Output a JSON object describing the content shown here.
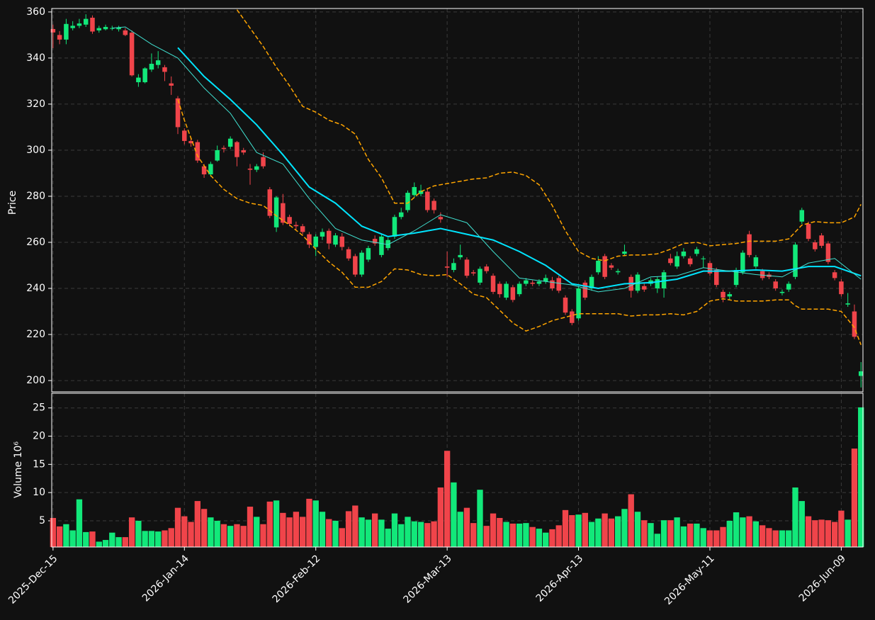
{
  "chart_data": [
    {
      "type": "candlestick",
      "ylabel": "Price",
      "up_color": "#12e87a",
      "down_color": "#f0444a",
      "x": [
        0,
        1,
        2,
        3,
        4,
        5,
        6,
        7,
        8,
        9,
        10,
        11,
        12,
        13,
        14,
        15,
        16,
        17,
        18,
        19,
        20,
        21,
        22,
        23,
        24,
        25,
        26,
        27,
        28,
        29,
        30,
        31,
        32,
        33,
        34,
        35,
        36,
        37,
        38,
        39,
        40,
        41,
        42,
        43,
        44,
        45,
        46,
        47,
        48,
        49,
        50,
        51,
        52,
        53,
        54,
        55,
        56,
        57,
        58,
        59,
        60,
        61,
        62,
        63,
        64,
        65,
        66,
        67,
        68,
        69,
        70,
        71,
        72,
        73,
        74,
        75,
        76,
        77,
        78,
        79,
        80,
        81,
        82,
        83,
        84,
        85,
        86,
        87,
        88,
        89,
        90,
        91,
        92,
        93,
        94,
        95,
        96,
        97,
        98,
        99,
        100,
        101,
        102,
        103,
        104,
        105,
        106,
        107,
        108,
        109,
        110,
        111,
        112,
        113,
        114,
        115,
        116,
        117,
        118,
        119,
        120,
        121,
        122,
        123
      ],
      "open": [
        352.6,
        350,
        348,
        353,
        354,
        354.5,
        357.5,
        352,
        352.5,
        353,
        352.5,
        352,
        351,
        329.5,
        329.5,
        335,
        337,
        336,
        329,
        322.5,
        308.5,
        304,
        303.5,
        293,
        289.5,
        295.5,
        301,
        301.5,
        303.5,
        300,
        292,
        291.5,
        297,
        283,
        266.5,
        277,
        271,
        267.5,
        267,
        263.5,
        258,
        262.5,
        265,
        259,
        262.5,
        257,
        254,
        246,
        252.5,
        261.5,
        254.5,
        257.5,
        262.5,
        271,
        274,
        280.5,
        281,
        282,
        278,
        271,
        249.5,
        248,
        253.5,
        252.5,
        247,
        242.5,
        249.5,
        245.5,
        242,
        236,
        240.5,
        237.5,
        242,
        242.5,
        242,
        243,
        243.5,
        244.5,
        236,
        230,
        227,
        242.5,
        240,
        247,
        254,
        250,
        247,
        255,
        245,
        239,
        241,
        242,
        240,
        240,
        253,
        249.5,
        254,
        253,
        255,
        253,
        251,
        248,
        238.5,
        236.5,
        241.5,
        247,
        263.5,
        249.5,
        247.5,
        246,
        243,
        238,
        239.5,
        245,
        269,
        268,
        260,
        263,
        259.5,
        247,
        243,
        233,
        230,
        202
      ],
      "high": [
        354.5,
        351.7,
        357,
        356,
        357,
        359,
        358.5,
        354,
        354.5,
        354,
        354,
        353,
        352,
        333,
        336,
        342,
        343,
        337,
        332,
        323.5,
        309.5,
        305.5,
        304.5,
        294,
        295,
        302,
        302,
        306,
        304,
        301,
        294,
        294,
        299,
        284,
        280,
        281,
        272,
        269,
        268,
        264.5,
        263.5,
        266,
        266,
        264,
        264,
        258,
        255,
        256.5,
        258.5,
        263,
        263.5,
        262,
        272,
        275,
        282.5,
        286,
        285,
        283,
        279,
        273,
        256,
        253,
        259,
        253.5,
        248,
        249.5,
        250.5,
        246.5,
        243,
        243,
        241.5,
        243,
        244.5,
        243.5,
        244,
        246,
        245,
        245.5,
        237,
        231,
        241,
        243.5,
        246,
        254,
        255,
        251,
        248.5,
        259,
        246,
        247,
        242,
        244.5,
        245,
        248,
        255,
        256,
        257.5,
        254,
        258,
        254,
        252,
        249,
        239.5,
        238.5,
        249,
        256.5,
        265,
        254.5,
        248.5,
        247,
        244,
        239.5,
        243,
        260,
        275,
        269,
        261,
        264,
        260.5,
        248,
        244,
        238,
        233,
        208
      ],
      "low": [
        344.3,
        346,
        346,
        352,
        353,
        353.5,
        350.5,
        351,
        352,
        352,
        351.5,
        349.5,
        332,
        327.5,
        329,
        334,
        335.5,
        330,
        324,
        307,
        302.5,
        301.5,
        294.5,
        288,
        288.5,
        295,
        299,
        300.5,
        293,
        298,
        285,
        290.5,
        292,
        270.5,
        264.5,
        267.5,
        267,
        265.5,
        263.5,
        257.5,
        254,
        261,
        257,
        258,
        256.5,
        252,
        245,
        245,
        251.5,
        258.5,
        253.5,
        256.5,
        261.5,
        270,
        273,
        279.5,
        280,
        273,
        272.5,
        268.5,
        245,
        247,
        252.5,
        244.5,
        245.5,
        241.5,
        246.5,
        237.5,
        236,
        235,
        234,
        236.5,
        241,
        241,
        241,
        242,
        239,
        238,
        228.5,
        224,
        226,
        235,
        239,
        246,
        244,
        248,
        246,
        254,
        236,
        238,
        238.5,
        241,
        238,
        236,
        250,
        248.5,
        253,
        249.5,
        254,
        249,
        245.5,
        240.5,
        234,
        235,
        240.5,
        246,
        253.5,
        248.5,
        243.5,
        244,
        239,
        237,
        238.5,
        244,
        268,
        260.5,
        256,
        257.5,
        250.5,
        243.5,
        236.5,
        232,
        218,
        197
      ],
      "close": [
        351.1,
        348,
        354.8,
        354,
        355,
        357,
        351.5,
        353,
        353.5,
        353,
        353.3,
        350,
        332.5,
        331.5,
        335.5,
        337.5,
        339,
        334,
        328,
        310,
        304,
        303,
        295.5,
        289.5,
        294,
        300,
        300.5,
        305,
        297,
        299,
        291.5,
        293,
        293,
        271.5,
        279.5,
        268.5,
        268,
        267,
        264.5,
        259,
        262.5,
        264.5,
        259.5,
        263,
        258,
        253,
        246,
        255.5,
        257.5,
        259.5,
        262.5,
        261,
        271,
        273,
        281.5,
        284,
        282.5,
        274,
        274,
        270,
        249,
        251,
        254.5,
        245.5,
        246.5,
        248.5,
        247.5,
        238.5,
        237.5,
        242,
        235,
        242,
        243.5,
        242,
        243,
        244.5,
        240,
        239,
        229.5,
        225,
        240,
        236,
        245,
        252,
        245,
        249,
        247.5,
        256,
        239,
        246,
        239.5,
        243.5,
        244,
        247,
        251,
        254,
        256,
        250.5,
        257,
        253,
        246.5,
        241.5,
        236,
        237.5,
        248,
        255.5,
        254.5,
        253.5,
        244.5,
        245,
        240,
        238.5,
        242,
        259,
        274,
        261.5,
        257,
        258.5,
        251.5,
        244.5,
        237.5,
        233.5,
        219,
        204
      ],
      "lines": [
        {
          "color": "#00e5ff",
          "width": 2,
          "dash": false,
          "x": [
            19,
            23,
            27,
            31,
            35,
            39,
            43,
            47,
            51,
            55,
            59,
            63,
            67,
            71,
            75,
            79,
            83,
            87,
            91,
            95,
            99,
            103,
            107,
            111,
            115,
            119,
            123
          ],
          "values": [
            344.5,
            332,
            322,
            311,
            298,
            284,
            277,
            267,
            262.5,
            264,
            266,
            263.5,
            261,
            256,
            250,
            242,
            240,
            242,
            242.5,
            244,
            247.5,
            247.5,
            248,
            247.5,
            249.5,
            249.5,
            245.5
          ]
        },
        {
          "color": "#40e0d0",
          "width": 1,
          "dash": false,
          "x": [
            9,
            11,
            15,
            19,
            23,
            27,
            31,
            35,
            39,
            43,
            47,
            51,
            55,
            59,
            63,
            67,
            71,
            75,
            79,
            83,
            87,
            91,
            95,
            99,
            103,
            107,
            111,
            115,
            119,
            123
          ],
          "values": [
            353,
            353.5,
            346,
            340,
            327,
            316,
            299,
            294,
            279,
            266,
            261,
            259,
            265,
            272,
            268.5,
            256,
            244.5,
            243,
            241.5,
            238.5,
            240,
            245,
            245.5,
            249,
            247.5,
            246,
            245,
            251,
            253,
            244
          ]
        },
        {
          "color": "#ffa500",
          "width": 1.5,
          "dash": true,
          "x": [
            28,
            30,
            32,
            34,
            36,
            38,
            40,
            42,
            44,
            46,
            48,
            50,
            52,
            54,
            56,
            58,
            60,
            62,
            64,
            66,
            68,
            70,
            72,
            74,
            76,
            78,
            80,
            82,
            84,
            86,
            88,
            90,
            92,
            94,
            96,
            98,
            100,
            102,
            104,
            106,
            108,
            110,
            112,
            114,
            116,
            118,
            120,
            122,
            123
          ],
          "values": [
            361,
            353,
            345,
            336,
            328,
            319,
            316.5,
            313,
            311,
            307,
            296,
            288,
            277,
            277,
            282,
            284.5,
            285.5,
            286.5,
            287.5,
            288,
            290,
            290.5,
            289,
            285,
            276,
            265,
            256,
            253,
            252,
            254,
            254.5,
            254.5,
            255,
            257,
            259.5,
            260,
            258.5,
            259,
            259.5,
            260.5,
            260.5,
            260.5,
            261.5,
            267.5,
            269,
            268.5,
            268.5,
            271,
            276.5
          ]
        },
        {
          "color": "#ffa500",
          "width": 1.5,
          "dash": true,
          "x": [
            19,
            20,
            22,
            24,
            26,
            28,
            30,
            32,
            34,
            36,
            38,
            40,
            42,
            44,
            46,
            48,
            50,
            52,
            54,
            56,
            58,
            60,
            62,
            64,
            66,
            68,
            70,
            72,
            74,
            76,
            78,
            80,
            82,
            84,
            86,
            88,
            90,
            92,
            94,
            96,
            98,
            100,
            102,
            104,
            106,
            108,
            110,
            112,
            113,
            114,
            116,
            118,
            120,
            122,
            123
          ],
          "values": [
            322,
            313,
            297.5,
            289,
            283,
            279,
            277,
            276,
            271.5,
            267.5,
            263,
            257,
            251.5,
            247,
            240.5,
            240.5,
            243,
            248.5,
            248,
            246,
            245.5,
            246,
            242,
            237.5,
            236,
            230.5,
            225,
            221.5,
            223.5,
            226,
            227.5,
            229,
            229,
            229,
            229,
            228,
            228.5,
            228.5,
            229,
            228.5,
            230,
            234.5,
            235.5,
            234.5,
            234.5,
            234.5,
            235,
            235,
            232.5,
            231,
            231,
            231,
            230,
            223,
            215.5
          ]
        }
      ],
      "xlim": [
        -0.2,
        123.3
      ],
      "xticks": [
        {
          "value": 0,
          "label": "2025-Dec-15"
        },
        {
          "value": 20,
          "label": "2026-Jan-14"
        },
        {
          "value": 40,
          "label": "2026-Feb-12"
        },
        {
          "value": 60,
          "label": "2026-Mar-13"
        },
        {
          "value": 80,
          "label": "2026-Apr-13"
        },
        {
          "value": 100,
          "label": "2026-May-11"
        },
        {
          "value": 120,
          "label": "2026-Jun-09"
        }
      ],
      "ylim": [
        195.1,
        361.5
      ],
      "yticks": [
        200,
        220,
        240,
        260,
        280,
        300,
        320,
        340,
        360
      ],
      "grid": true
    },
    {
      "type": "bar",
      "ylabel": "Volume  10⁶",
      "values": [
        5.5,
        4,
        4.4,
        3.3,
        8.8,
        3,
        3.1,
        1.3,
        1.6,
        2.9,
        2.1,
        2.1,
        5.6,
        5,
        3.2,
        3.2,
        3.1,
        3.3,
        3.7,
        7.3,
        5.8,
        4.8,
        8.5,
        7.1,
        5.6,
        5,
        4.4,
        4.1,
        4.4,
        4.1,
        7.5,
        5.7,
        4.4,
        8.4,
        8.6,
        6.4,
        5.6,
        6.6,
        5.7,
        8.9,
        8.6,
        6.6,
        5.3,
        5,
        3.7,
        6.7,
        7.7,
        5.6,
        5.2,
        6.3,
        5.2,
        3.6,
        6.3,
        4.4,
        5.7,
        4.9,
        4.8,
        4.6,
        4.9,
        10.9,
        17.4,
        11.8,
        6.6,
        7.3,
        4.6,
        10.5,
        4.1,
        6.3,
        5.5,
        4.8,
        4.5,
        4.5,
        4.6,
        3.9,
        3.6,
        2.9,
        3.5,
        4.2,
        6.9,
        6,
        6.1,
        6.4,
        4.8,
        5.4,
        6.3,
        5.4,
        5.8,
        7.1,
        9.7,
        6.6,
        5.1,
        4.6,
        2.7,
        5.1,
        5.1,
        5.6,
        4,
        4.5,
        4.5,
        3.7,
        3.3,
        3.3,
        3.9,
        5,
        6.5,
        5.6,
        5.8,
        4.9,
        4.2,
        3.7,
        3.3,
        3.3,
        3.3,
        10.9,
        8.5,
        5.8,
        5.1,
        5.2,
        5.1,
        4.8,
        6.8,
        5.2,
        17.8,
        25.1
      ],
      "ylim": [
        0.35,
        27.6
      ],
      "yticks": [
        5,
        10,
        15,
        20,
        25
      ],
      "grid": true
    }
  ]
}
